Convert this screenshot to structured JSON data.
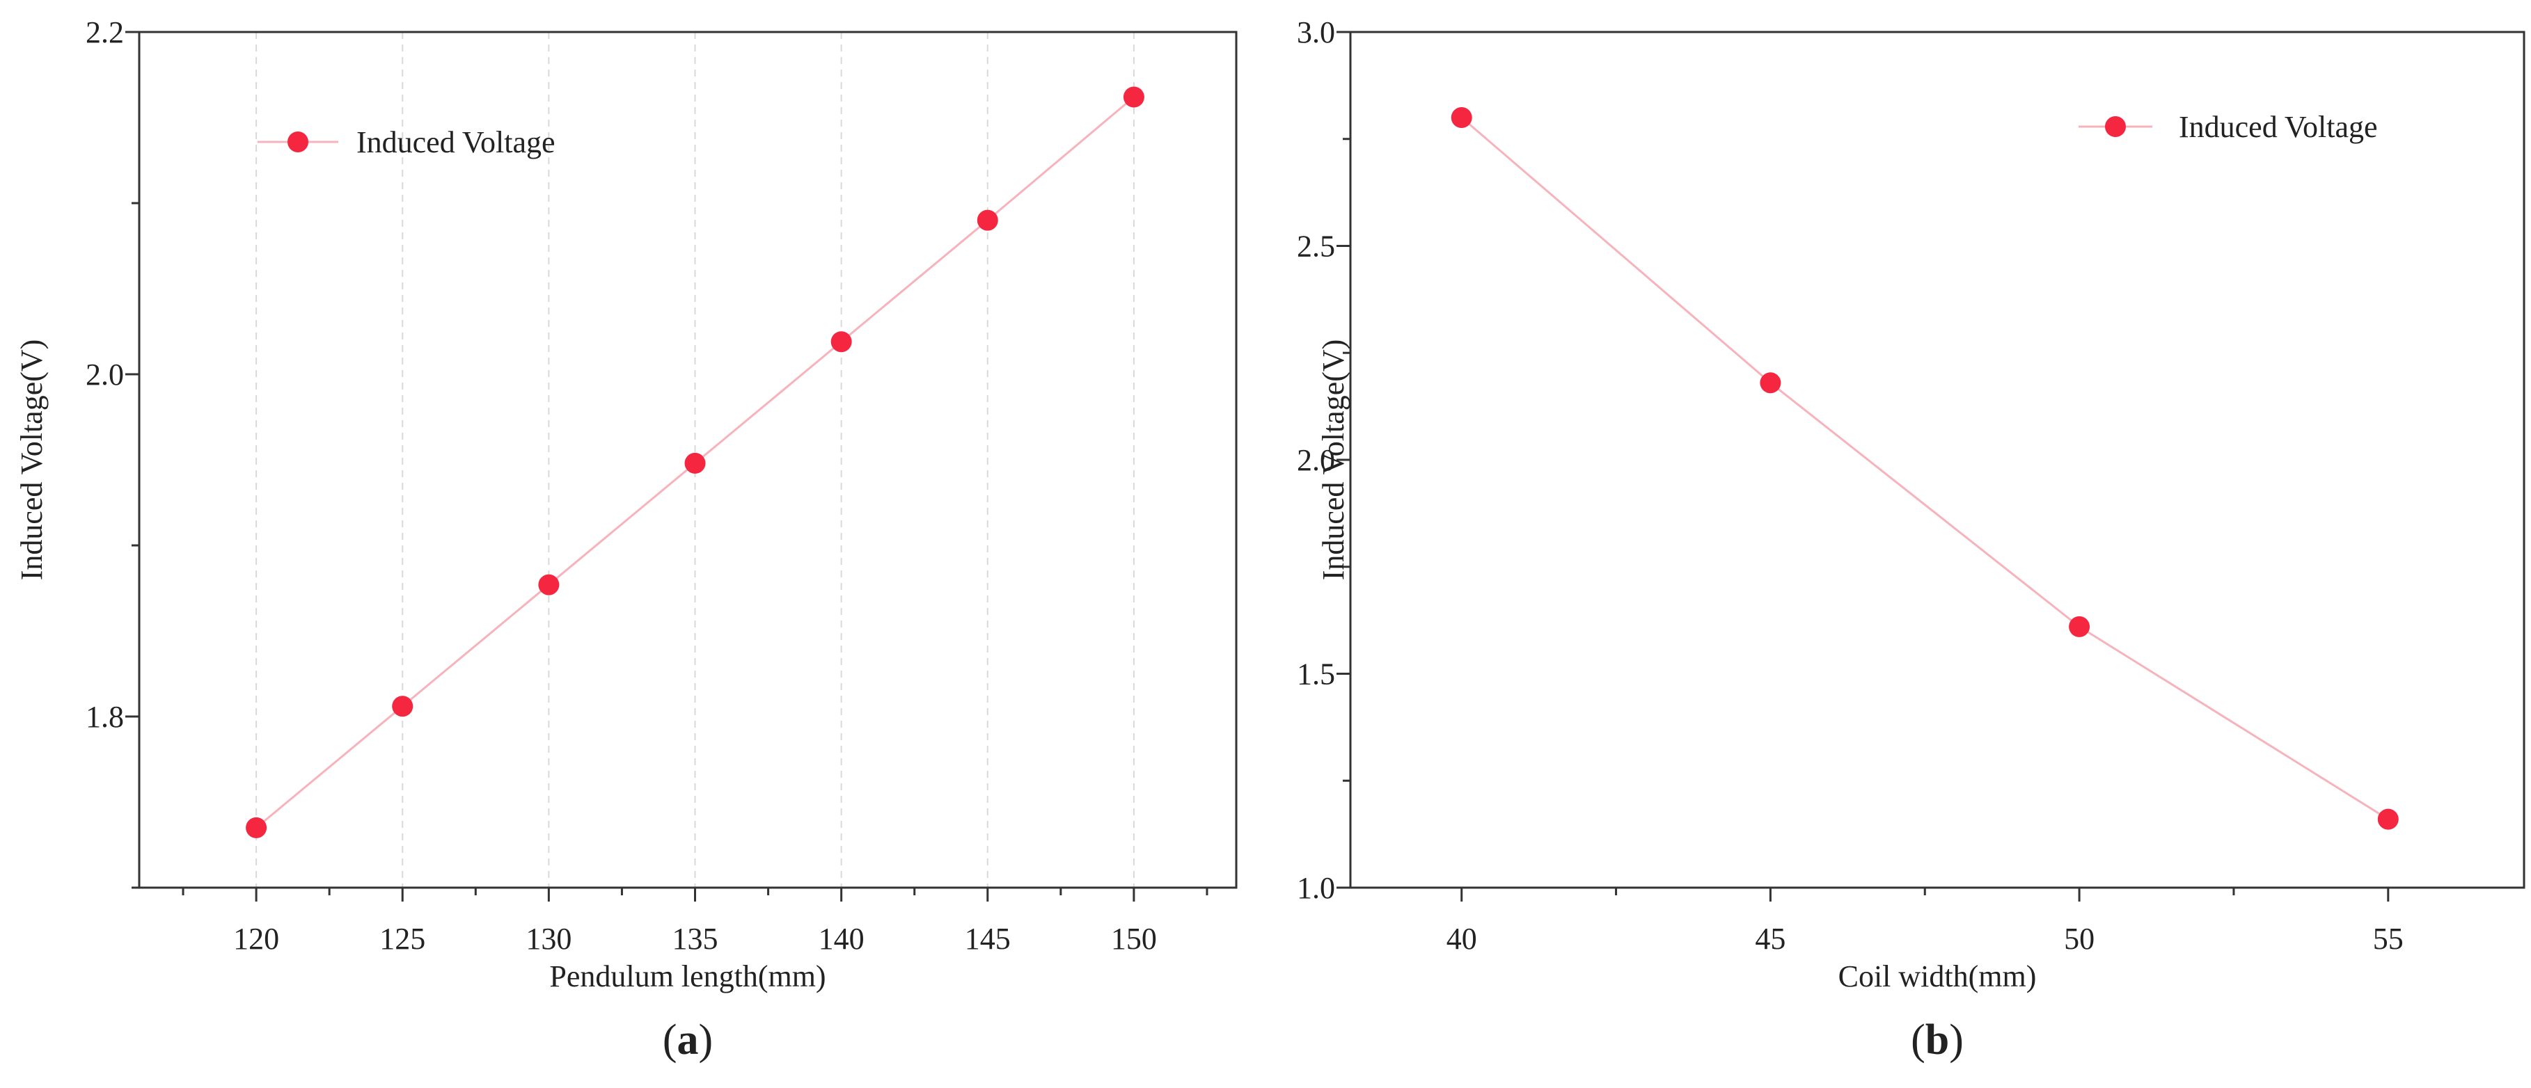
{
  "colors": {
    "marker": "#f5263f",
    "line": "#f7b3bc",
    "grid": "#d9d9d9",
    "axis": "#333333"
  },
  "chart_data": [
    {
      "type": "line",
      "panel_label": "a",
      "title": "",
      "xlabel": "Pendulum length(mm)",
      "ylabel": "Induced Voltage(V)",
      "x": [
        120,
        125,
        130,
        135,
        140,
        145,
        150
      ],
      "series": [
        {
          "name": "Induced Voltage",
          "values": [
            1.735,
            1.806,
            1.877,
            1.948,
            2.019,
            2.09,
            2.162
          ]
        }
      ],
      "xlim": [
        116,
        153.5
      ],
      "ylim": [
        1.7,
        2.2
      ],
      "xticks": [
        120,
        125,
        130,
        135,
        140,
        145,
        150
      ],
      "xtick_labels": [
        "120",
        "125",
        "130",
        "135",
        "140",
        "145",
        "150"
      ],
      "yticks": [
        1.8,
        2.0,
        2.2
      ],
      "ytick_labels": [
        "1.8",
        "2.0",
        "2.2"
      ],
      "grid": "vertical dashed",
      "legend_position": "top-left"
    },
    {
      "type": "line",
      "panel_label": "b",
      "title": "",
      "xlabel": "Coil width(mm)",
      "ylabel": "Induced Voltage(V)",
      "x": [
        40,
        45,
        50,
        55
      ],
      "series": [
        {
          "name": "Induced Voltage",
          "values": [
            2.8,
            2.18,
            1.61,
            1.16
          ]
        }
      ],
      "xlim": [
        38.2,
        57.2
      ],
      "ylim": [
        1.0,
        3.0
      ],
      "xticks": [
        40,
        45,
        50,
        55
      ],
      "xtick_labels": [
        "40",
        "45",
        "50",
        "55"
      ],
      "yticks": [
        1.0,
        1.5,
        2.0,
        2.5,
        3.0
      ],
      "ytick_labels": [
        "1.0",
        "1.5",
        "2.0",
        "2.5",
        "3.0"
      ],
      "grid": "none",
      "legend_position": "top-right"
    }
  ]
}
